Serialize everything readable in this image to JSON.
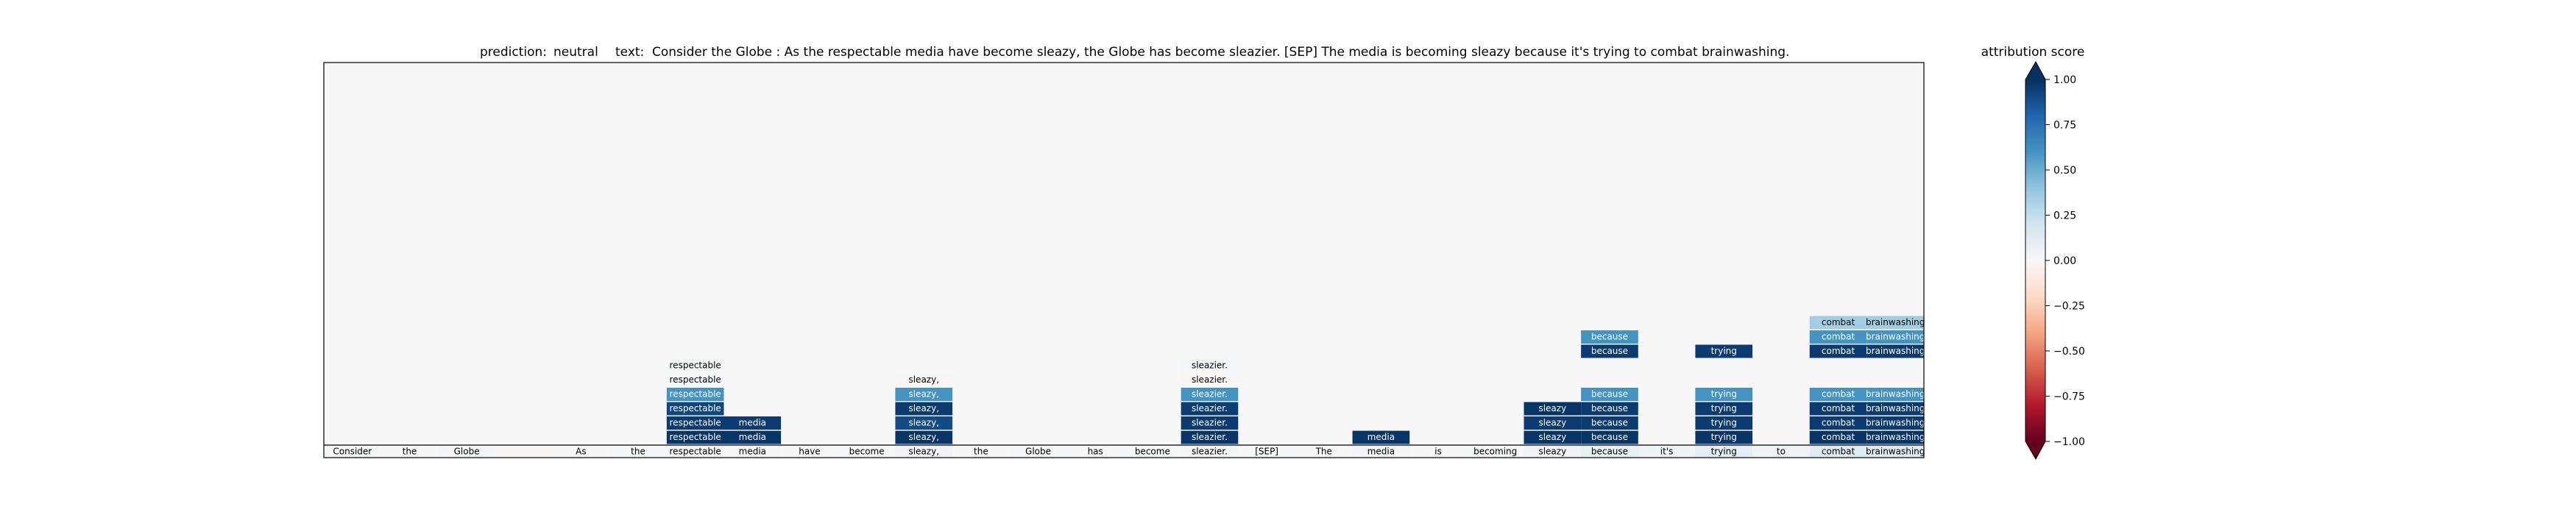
{
  "header": {
    "prediction_label": "prediction:",
    "prediction_value": "neutral",
    "text_label": "text:",
    "text_value": "Consider the Globe : As the respectable media have become sleazy, the Globe has become sleazier. [SEP] The media is becoming sleazy because it's trying to combat brainwashing."
  },
  "colorbar": {
    "title": "attribution score",
    "ticks": [
      "1.00",
      "0.75",
      "0.50",
      "0.25",
      "0.00",
      "−0.25",
      "−0.50",
      "−0.75",
      "−1.00"
    ],
    "tick_values": [
      1.0,
      0.75,
      0.5,
      0.25,
      0.0,
      -0.25,
      -0.5,
      -0.75,
      -1.0
    ],
    "colors": [
      "#67001f",
      "#b2182b",
      "#d6604d",
      "#f4a582",
      "#fddbc7",
      "#f7f7f7",
      "#d1e5f0",
      "#92c5de",
      "#4393c3",
      "#2166ac",
      "#053061"
    ]
  },
  "chart_data": {
    "type": "heatmap",
    "title": "prediction:  neutral     text:  Consider the Globe : As the respectable media have become sleazy, the Globe has become sleazier. [SEP] The media is becoming sleazy because it's trying to combat brainwashing.",
    "colorbar_label": "attribution score",
    "vlim": [
      -1.0,
      1.0
    ],
    "tokens": [
      "Consider",
      "the",
      "Globe",
      ":",
      "As",
      "the",
      "respectable",
      "media",
      "have",
      "become",
      "sleazy,",
      "the",
      "Globe",
      "has",
      "become",
      "sleazier.",
      "[SEP]",
      "The",
      "media",
      "is",
      "becoming",
      "sleazy",
      "because",
      "it's",
      "trying",
      "to",
      "combat",
      "brainwashing."
    ],
    "token_labels": [
      "Consider",
      "the",
      "Globe",
      "",
      "As",
      "the",
      "respectable",
      "media",
      "have",
      "become",
      "sleazy,",
      "the",
      "Globe",
      "has",
      "become",
      "sleazier.",
      "[SEP]",
      "The",
      "media",
      "is",
      "becoming",
      "sleazy",
      "because",
      "it's",
      "trying",
      "to",
      "combat",
      "brainwashing"
    ],
    "bottom_row_scores": [
      0.01,
      0.0,
      0.02,
      -0.01,
      0.0,
      0.01,
      0.02,
      0.01,
      0.0,
      0.01,
      0.03,
      0.0,
      0.01,
      0.0,
      0.01,
      0.02,
      0.01,
      0.0,
      0.02,
      0.0,
      0.01,
      0.03,
      0.08,
      0.05,
      0.1,
      0.04,
      0.12,
      0.12
    ],
    "highlights": [
      {
        "token": "respectable",
        "layer": 1,
        "score": 0.98
      },
      {
        "token": "respectable",
        "layer": 2,
        "score": 0.96
      },
      {
        "token": "respectable",
        "layer": 3,
        "score": 0.92
      },
      {
        "token": "respectable",
        "layer": 4,
        "score": 0.6
      },
      {
        "token": "respectable",
        "layer": 5,
        "score": 0.01
      },
      {
        "token": "respectable",
        "layer": 6,
        "score": 0.01
      },
      {
        "token": "media",
        "position": 7,
        "layer": 1,
        "score": 0.98
      },
      {
        "token": "media",
        "position": 7,
        "layer": 2,
        "score": 0.96
      },
      {
        "token": "sleazy,",
        "layer": 1,
        "score": 0.98
      },
      {
        "token": "sleazy,",
        "layer": 2,
        "score": 0.9
      },
      {
        "token": "sleazy,",
        "layer": 3,
        "score": 0.96
      },
      {
        "token": "sleazy,",
        "layer": 4,
        "score": 0.6
      },
      {
        "token": "sleazy,",
        "layer": 5,
        "score": -0.01
      },
      {
        "token": "sleazier.",
        "layer": 1,
        "score": 0.98
      },
      {
        "token": "sleazier.",
        "layer": 2,
        "score": 0.96
      },
      {
        "token": "sleazier.",
        "layer": 3,
        "score": 0.95
      },
      {
        "token": "sleazier.",
        "layer": 4,
        "score": 0.6
      },
      {
        "token": "sleazier.",
        "layer": 5,
        "score": -0.01
      },
      {
        "token": "sleazier.",
        "layer": 6,
        "score": 0.01
      },
      {
        "token": "media",
        "position": 18,
        "layer": 1,
        "score": 0.98
      },
      {
        "token": "sleazy",
        "layer": 1,
        "score": 0.98
      },
      {
        "token": "sleazy",
        "layer": 2,
        "score": 0.96
      },
      {
        "token": "sleazy",
        "layer": 3,
        "score": 0.98
      },
      {
        "token": "because",
        "layer": 1,
        "score": 0.98
      },
      {
        "token": "because",
        "layer": 2,
        "score": 0.96
      },
      {
        "token": "because",
        "layer": 3,
        "score": 0.96
      },
      {
        "token": "because",
        "layer": 4,
        "score": 0.6
      },
      {
        "token": "because",
        "layer": 7,
        "score": 0.96
      },
      {
        "token": "because",
        "layer": 8,
        "score": 0.6
      },
      {
        "token": "trying",
        "layer": 1,
        "score": 0.98
      },
      {
        "token": "trying",
        "layer": 2,
        "score": 0.96
      },
      {
        "token": "trying",
        "layer": 3,
        "score": 0.96
      },
      {
        "token": "trying",
        "layer": 4,
        "score": 0.6
      },
      {
        "token": "trying",
        "layer": 7,
        "score": 0.96
      },
      {
        "token": "combat",
        "layer": 1,
        "score": 0.98
      },
      {
        "token": "combat",
        "layer": 2,
        "score": 0.96
      },
      {
        "token": "combat",
        "layer": 3,
        "score": 0.96
      },
      {
        "token": "combat",
        "layer": 4,
        "score": 0.6
      },
      {
        "token": "combat",
        "layer": 7,
        "score": 0.96
      },
      {
        "token": "combat",
        "layer": 8,
        "score": 0.6
      },
      {
        "token": "combat",
        "layer": 9,
        "score": 0.35
      },
      {
        "token": "brainwashing.",
        "layer": 1,
        "score": 0.98
      },
      {
        "token": "brainwashing.",
        "layer": 2,
        "score": 0.96
      },
      {
        "token": "brainwashing.",
        "layer": 3,
        "score": 0.96
      },
      {
        "token": "brainwashing.",
        "layer": 4,
        "score": 0.6
      },
      {
        "token": "brainwashing.",
        "layer": 7,
        "score": 0.96
      },
      {
        "token": "brainwashing.",
        "layer": 8,
        "score": 0.6
      },
      {
        "token": "brainwashing.",
        "layer": 9,
        "score": 0.35
      }
    ]
  }
}
